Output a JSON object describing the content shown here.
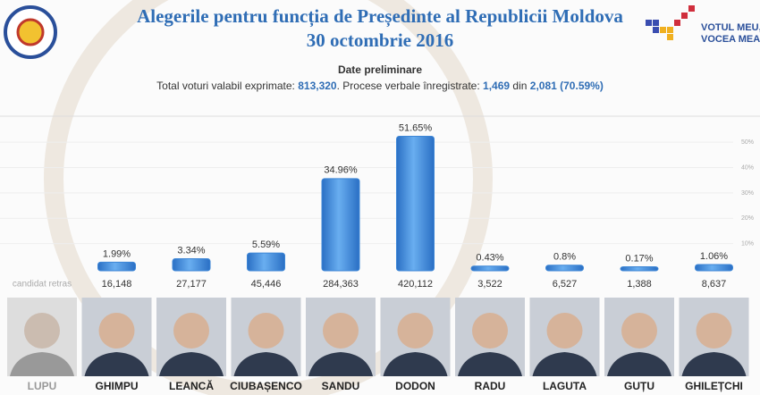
{
  "header": {
    "title": "Alegerile pentru funcția de Președinte al Republicii Moldova",
    "date": "30 octombrie 2016",
    "status": "Date preliminare",
    "stats": {
      "label1": "Total voturi valabil exprimate:",
      "total_votes": "813,320",
      "label2": ". Procese verbale înregistrate:",
      "reports": "1,469",
      "label3": "din",
      "reports_total": "2,081",
      "reports_share": "(70.59%)"
    },
    "slogan_line1": "VOTUL MEU,",
    "slogan_line2": "VOCEA MEA!"
  },
  "chart_data": {
    "type": "bar",
    "categories": [
      "LUPU",
      "GHIMPU",
      "LEANCĂ",
      "CIUBAȘENCO",
      "SANDU",
      "DODON",
      "RADU",
      "LAGUTA",
      "GUȚU",
      "GHILEȚCHI"
    ],
    "values": [
      null,
      1.99,
      3.34,
      5.59,
      34.96,
      51.65,
      0.43,
      0.8,
      0.17,
      1.06
    ],
    "value_labels": [
      null,
      "1.99%",
      "3.34%",
      "5.59%",
      "34.96%",
      "51.65%",
      "0.43%",
      "0.8%",
      "0.17%",
      "1.06%"
    ],
    "votes": [
      "candidat retras",
      "16,148",
      "27,177",
      "45,446",
      "284,363",
      "420,112",
      "3,522",
      "6,527",
      "1,388",
      "8,637"
    ],
    "color": "#3d86d6",
    "ylim": [
      0,
      55
    ],
    "yticks": [
      {
        "value": 10,
        "label": "10%"
      },
      {
        "value": 20,
        "label": "20%"
      },
      {
        "value": 30,
        "label": "30%"
      },
      {
        "value": 40,
        "label": "40%"
      },
      {
        "value": 50,
        "label": "50%"
      }
    ],
    "grid": true
  }
}
